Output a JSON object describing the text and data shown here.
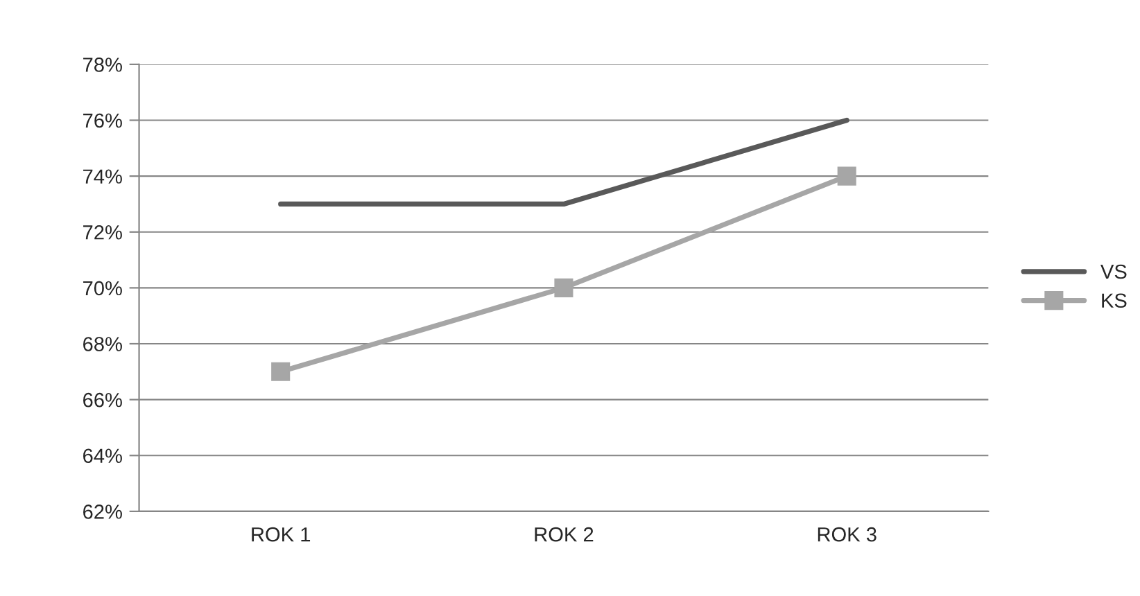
{
  "chart_data": {
    "type": "line",
    "categories": [
      "ROK 1",
      "ROK 2",
      "ROK 3"
    ],
    "series": [
      {
        "name": "VS",
        "color": "#595959",
        "values": [
          73,
          73,
          76
        ],
        "marker": "none"
      },
      {
        "name": "KS",
        "color": "#a6a6a6",
        "values": [
          67,
          70,
          74
        ],
        "marker": "square"
      }
    ],
    "ylim": [
      62,
      78
    ],
    "yticks": [
      {
        "value": 62,
        "label": "62%"
      },
      {
        "value": 64,
        "label": "64%"
      },
      {
        "value": 66,
        "label": "66%"
      },
      {
        "value": 68,
        "label": "68%"
      },
      {
        "value": 70,
        "label": "70%"
      },
      {
        "value": 72,
        "label": "72%"
      },
      {
        "value": 74,
        "label": "74%"
      },
      {
        "value": 76,
        "label": "76%"
      },
      {
        "value": 78,
        "label": "78%"
      }
    ],
    "grid": "y",
    "legend": "right",
    "line_style": "solid"
  }
}
